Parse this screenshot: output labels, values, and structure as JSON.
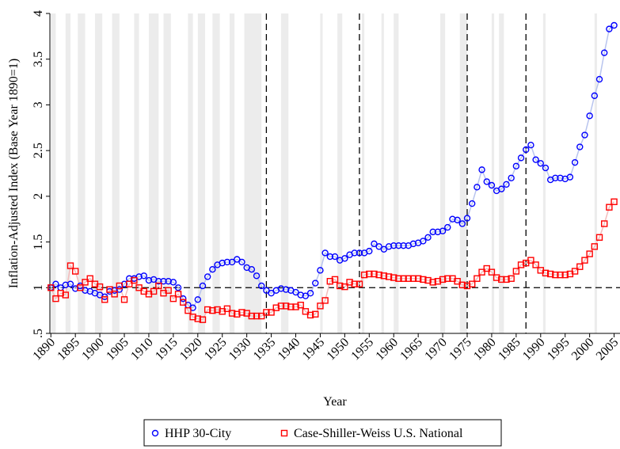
{
  "chart_data": {
    "type": "line",
    "x_label": "Year",
    "y_label": "Inflation-Adjusted Index (Base Year 1890=1)",
    "x": [
      1890,
      1891,
      1892,
      1893,
      1894,
      1895,
      1896,
      1897,
      1898,
      1899,
      1900,
      1901,
      1902,
      1903,
      1904,
      1905,
      1906,
      1907,
      1908,
      1909,
      1910,
      1911,
      1912,
      1913,
      1914,
      1915,
      1916,
      1917,
      1918,
      1919,
      1920,
      1921,
      1922,
      1923,
      1924,
      1925,
      1926,
      1927,
      1928,
      1929,
      1930,
      1931,
      1932,
      1933,
      1934,
      1935,
      1936,
      1937,
      1938,
      1939,
      1940,
      1941,
      1942,
      1943,
      1944,
      1945,
      1946,
      1947,
      1948,
      1949,
      1950,
      1951,
      1952,
      1953,
      1954,
      1955,
      1956,
      1957,
      1958,
      1959,
      1960,
      1961,
      1962,
      1963,
      1964,
      1965,
      1966,
      1967,
      1968,
      1969,
      1970,
      1971,
      1972,
      1973,
      1974,
      1975,
      1976,
      1977,
      1978,
      1979,
      1980,
      1981,
      1982,
      1983,
      1984,
      1985,
      1986,
      1987,
      1988,
      1989,
      1990,
      1991,
      1992,
      1993,
      1994,
      1995,
      1996,
      1997,
      1998,
      1999,
      2000,
      2001,
      2002,
      2003,
      2004,
      2005
    ],
    "series": [
      {
        "name": "HHP 30-City",
        "color": "#0000ff",
        "line_color": "#b8c4ee",
        "marker": "circle",
        "values": [
          1.0,
          1.04,
          1.0,
          1.03,
          1.04,
          0.99,
          1.02,
          0.97,
          0.96,
          0.94,
          0.92,
          0.9,
          0.96,
          0.97,
          0.98,
          1.04,
          1.1,
          1.1,
          1.12,
          1.13,
          1.08,
          1.09,
          1.07,
          1.07,
          1.07,
          1.06,
          1.0,
          0.88,
          0.81,
          0.78,
          0.87,
          1.02,
          1.12,
          1.2,
          1.25,
          1.27,
          1.28,
          1.28,
          1.31,
          1.28,
          1.22,
          1.2,
          1.13,
          1.02,
          0.97,
          0.94,
          0.97,
          0.99,
          0.98,
          0.97,
          0.95,
          0.92,
          0.91,
          0.94,
          1.05,
          1.19,
          1.38,
          1.34,
          1.34,
          1.3,
          1.32,
          1.36,
          1.38,
          1.38,
          1.38,
          1.4,
          1.48,
          1.45,
          1.42,
          1.45,
          1.46,
          1.46,
          1.46,
          1.46,
          1.48,
          1.49,
          1.51,
          1.55,
          1.61,
          1.61,
          1.62,
          1.66,
          1.75,
          1.74,
          1.7,
          1.76,
          1.92,
          2.1,
          2.29,
          2.16,
          2.12,
          2.06,
          2.08,
          2.13,
          2.2,
          2.33,
          2.42,
          2.51,
          2.56,
          2.4,
          2.36,
          2.31,
          2.18,
          2.2,
          2.2,
          2.19,
          2.21,
          2.37,
          2.54,
          2.67,
          2.88,
          3.1,
          3.28,
          3.57,
          3.83,
          3.87
        ]
      },
      {
        "name": "Case-Shiller-Weiss U.S. National",
        "color": "#ff0000",
        "line_color": "#f4bcbc",
        "marker": "square",
        "values": [
          1.0,
          0.88,
          0.94,
          0.92,
          1.24,
          1.18,
          1.0,
          1.06,
          1.1,
          1.04,
          1.01,
          0.87,
          0.98,
          0.93,
          1.02,
          0.87,
          1.04,
          1.08,
          1.0,
          0.96,
          0.93,
          0.96,
          1.02,
          0.94,
          0.97,
          0.88,
          0.93,
          0.84,
          0.75,
          0.68,
          0.66,
          0.65,
          0.76,
          0.75,
          0.76,
          0.74,
          0.77,
          0.72,
          0.71,
          0.73,
          0.72,
          0.69,
          0.69,
          0.69,
          0.73,
          0.73,
          0.78,
          0.8,
          0.8,
          0.79,
          0.79,
          0.81,
          0.74,
          0.7,
          0.71,
          0.8,
          0.86,
          1.07,
          1.09,
          1.02,
          1.01,
          1.06,
          1.04,
          1.04,
          1.14,
          1.15,
          1.15,
          1.14,
          1.13,
          1.12,
          1.11,
          1.1,
          1.1,
          1.1,
          1.1,
          1.1,
          1.09,
          1.08,
          1.06,
          1.07,
          1.09,
          1.1,
          1.1,
          1.07,
          1.03,
          1.02,
          1.04,
          1.1,
          1.17,
          1.21,
          1.17,
          1.11,
          1.09,
          1.09,
          1.1,
          1.18,
          1.25,
          1.27,
          1.3,
          1.25,
          1.19,
          1.16,
          1.15,
          1.14,
          1.14,
          1.14,
          1.15,
          1.18,
          1.23,
          1.3,
          1.37,
          1.45,
          1.55,
          1.7,
          1.88,
          1.94
        ]
      }
    ],
    "xlim": [
      1889.8,
      2006.2
    ],
    "ylim": [
      0.5,
      4
    ],
    "xticks": [
      1890,
      1895,
      1900,
      1905,
      1910,
      1915,
      1920,
      1925,
      1930,
      1935,
      1940,
      1945,
      1950,
      1955,
      1960,
      1965,
      1970,
      1975,
      1980,
      1985,
      1990,
      1995,
      2000,
      2005
    ],
    "yticks": [
      {
        "value": 0.5,
        "label": ".5"
      },
      1,
      1.5,
      2,
      2.5,
      3,
      3.5,
      4
    ],
    "vlines": [
      1934,
      1953,
      1975,
      1987
    ],
    "hline": 1,
    "shaded_periods": [
      [
        1890,
        1891
      ],
      [
        1893,
        1894
      ],
      [
        1895.5,
        1897
      ],
      [
        1899,
        1900.5
      ],
      [
        1902.5,
        1904
      ],
      [
        1907,
        1908
      ],
      [
        1910,
        1912
      ],
      [
        1913,
        1914.5
      ],
      [
        1918,
        1919
      ],
      [
        1920,
        1921.5
      ],
      [
        1923,
        1924.5
      ],
      [
        1926.5,
        1927.5
      ],
      [
        1929.5,
        1933
      ],
      [
        1937,
        1938.5
      ],
      [
        1945,
        1945.5
      ],
      [
        1948.5,
        1949.5
      ],
      [
        1953.5,
        1954
      ],
      [
        1957.5,
        1958
      ],
      [
        1960,
        1961
      ],
      [
        1969.5,
        1970.5
      ],
      [
        1973.5,
        1975
      ],
      [
        1980,
        1980.5
      ],
      [
        1981.5,
        1982.5
      ],
      [
        1990.5,
        1991
      ],
      [
        2001,
        2001.5
      ]
    ],
    "shade_color": "#ececec"
  }
}
